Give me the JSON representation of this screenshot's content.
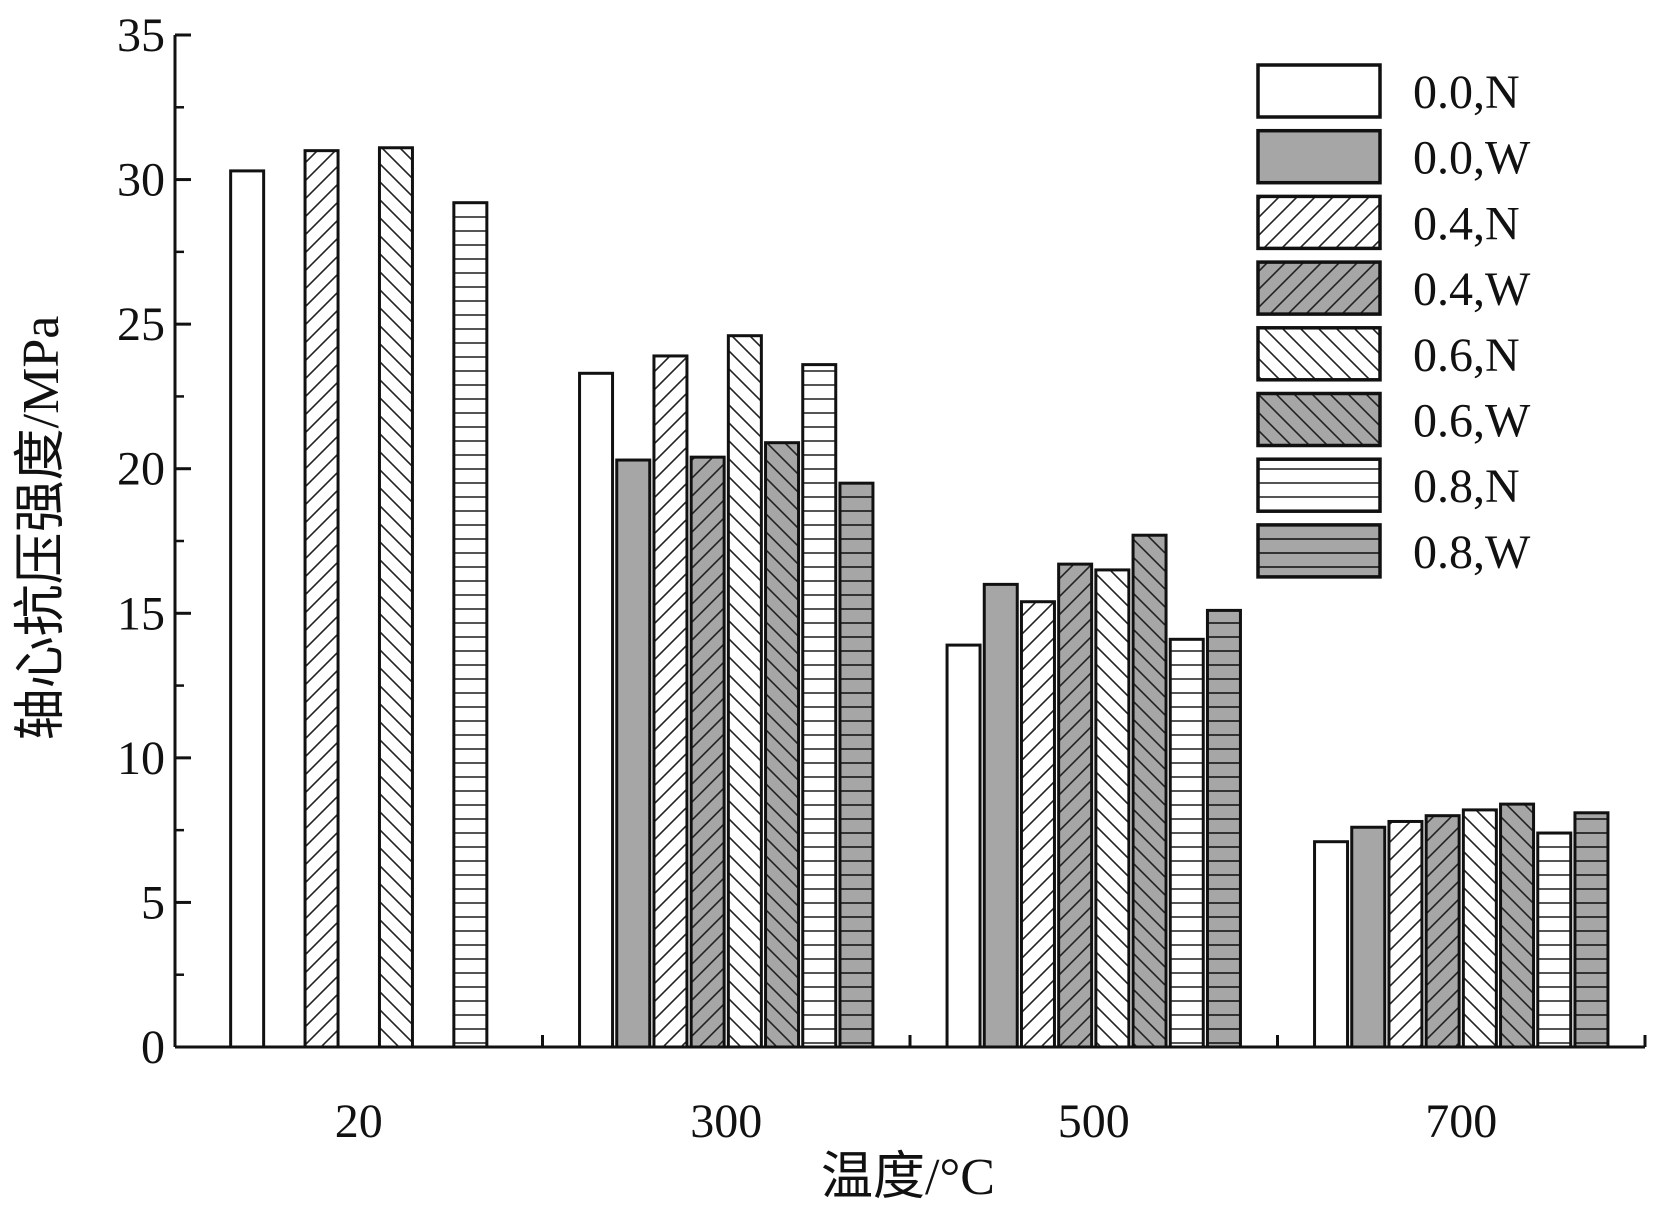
{
  "chart_data": {
    "type": "bar",
    "categories": [
      "20",
      "300",
      "500",
      "700"
    ],
    "xlabel": "温度/°C",
    "ylabel": "轴心抗压强度/MPa",
    "ylim": [
      0,
      35
    ],
    "yticks": [
      0,
      5,
      10,
      15,
      20,
      25,
      30,
      35
    ],
    "legend_position": "top-right",
    "grid": false,
    "series": [
      {
        "name": "0.0,N",
        "fill": "white",
        "pattern": "none",
        "values": [
          30.3,
          23.3,
          13.9,
          7.1
        ]
      },
      {
        "name": "0.0,W",
        "fill": "gray",
        "pattern": "none",
        "values": [
          null,
          20.3,
          16.0,
          7.6
        ]
      },
      {
        "name": "0.4,N",
        "fill": "white",
        "pattern": "fwd",
        "values": [
          31.0,
          23.9,
          15.4,
          7.8
        ]
      },
      {
        "name": "0.4,W",
        "fill": "gray",
        "pattern": "fwd",
        "values": [
          null,
          20.4,
          16.7,
          8.0
        ]
      },
      {
        "name": "0.6,N",
        "fill": "white",
        "pattern": "back",
        "values": [
          31.1,
          24.6,
          16.5,
          8.2
        ]
      },
      {
        "name": "0.6,W",
        "fill": "gray",
        "pattern": "back",
        "values": [
          null,
          20.9,
          17.7,
          8.4
        ]
      },
      {
        "name": "0.8,N",
        "fill": "white",
        "pattern": "horiz",
        "values": [
          29.2,
          23.6,
          14.1,
          7.4
        ]
      },
      {
        "name": "0.8,W",
        "fill": "gray",
        "pattern": "horiz",
        "values": [
          null,
          19.5,
          15.1,
          8.1
        ]
      }
    ]
  }
}
